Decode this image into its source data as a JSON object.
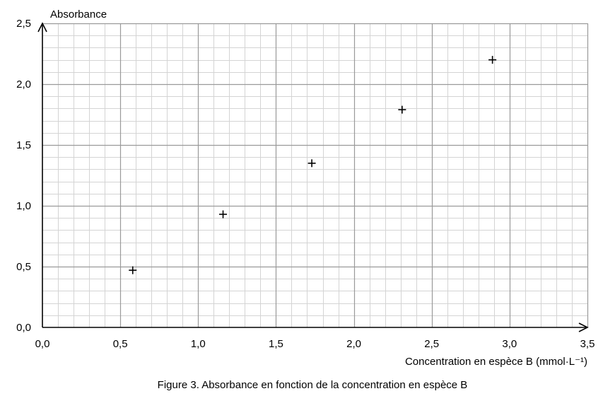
{
  "chart_data": {
    "type": "scatter",
    "title": "",
    "caption": "Figure 3. Absorbance en fonction de la concentration en espèce B",
    "xlabel": "Concentration en espèce B (mmol·L⁻¹)",
    "ylabel": "Absorbance",
    "xlim": [
      0,
      3.5
    ],
    "ylim": [
      0,
      2.5
    ],
    "x_ticks": [
      "0,0",
      "0,5",
      "1,0",
      "1,5",
      "2,0",
      "2,5",
      "3,0",
      "3,5"
    ],
    "y_ticks": [
      "0,0",
      "0,5",
      "1,0",
      "1,5",
      "2,0",
      "2,5"
    ],
    "x_tick_values": [
      0,
      0.5,
      1.0,
      1.5,
      2.0,
      2.5,
      3.0,
      3.5
    ],
    "y_tick_values": [
      0,
      0.5,
      1.0,
      1.5,
      2.0,
      2.5
    ],
    "minor_x_step": 0.1,
    "minor_y_step": 0.1,
    "grid": true,
    "marker": "+",
    "points": [
      {
        "x": 0.58,
        "y": 0.47
      },
      {
        "x": 1.16,
        "y": 0.93
      },
      {
        "x": 1.73,
        "y": 1.35
      },
      {
        "x": 2.31,
        "y": 1.79
      },
      {
        "x": 2.89,
        "y": 2.2
      }
    ],
    "colors": {
      "major_grid": "#9a9a9a",
      "minor_grid": "#d4d4d4",
      "axis": "#000000",
      "marker": "#000000"
    }
  }
}
